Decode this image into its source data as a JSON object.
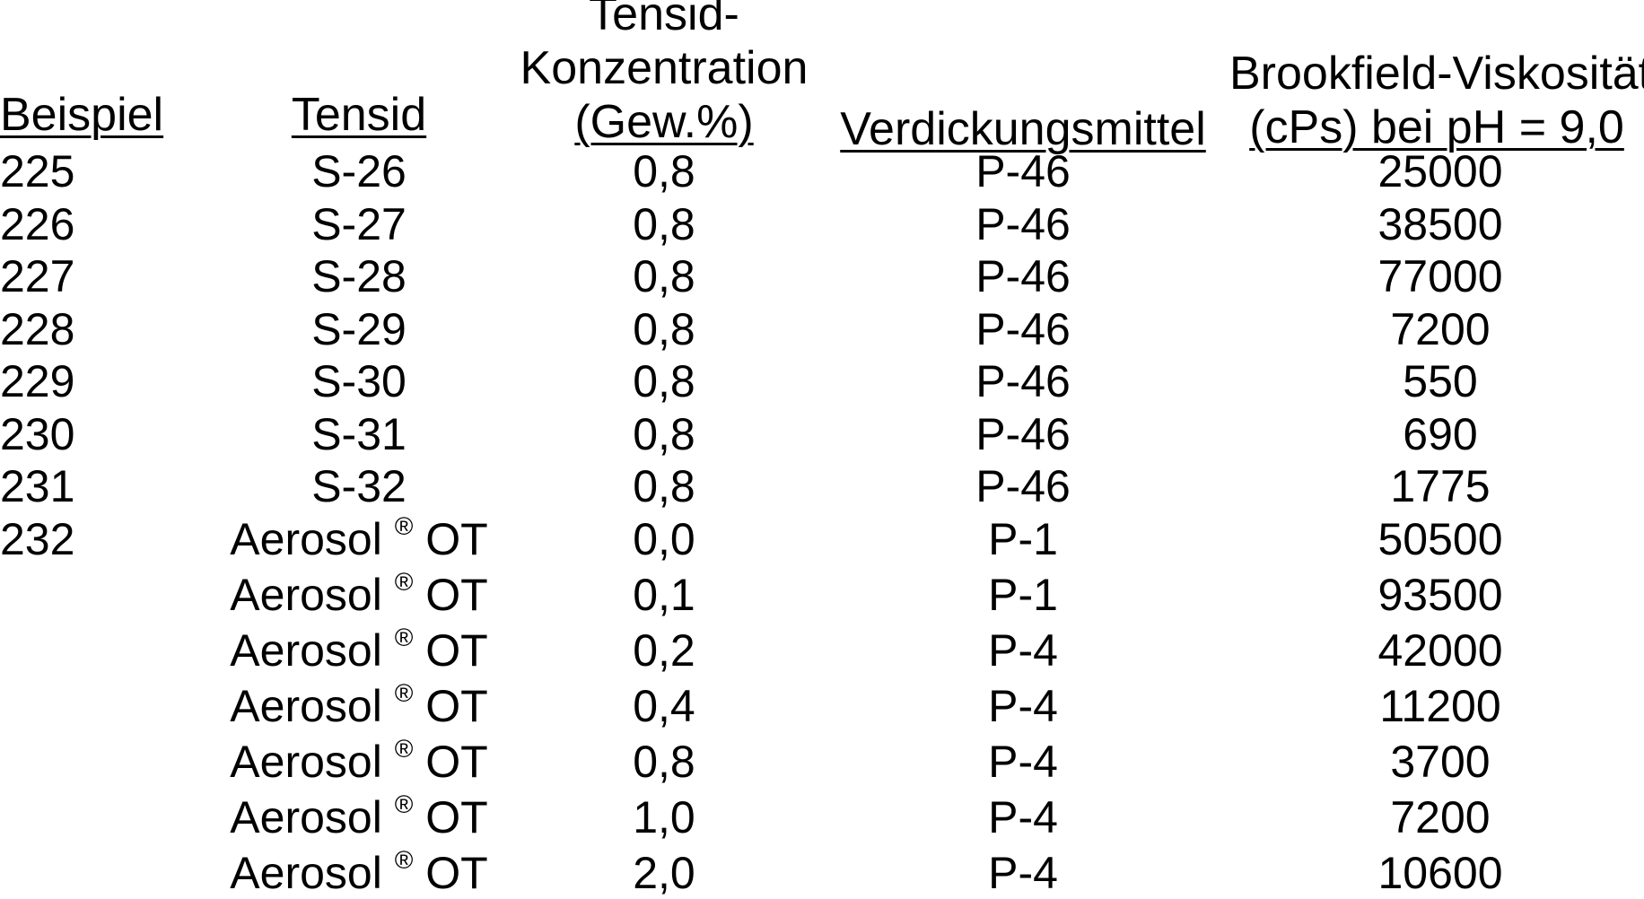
{
  "headers": {
    "beispiel": "Beispiel",
    "tensid": "Tensid",
    "konzentration_line1": "Tensid-",
    "konzentration_line2": "Konzentration",
    "konzentration_line3": "(Gew.%)",
    "verdickungsmittel": "Verdickungsmittel",
    "viskositaet_line1": "Brookfield-Viskosität",
    "viskositaet_line2": "(cPs) bei pH = 9,0"
  },
  "rows": [
    {
      "beispiel": "225",
      "tensid": "S-26",
      "konzentration": "0,8",
      "verdickungsmittel": "P-46",
      "viskositaet": "25000"
    },
    {
      "beispiel": "226",
      "tensid": "S-27",
      "konzentration": "0,8",
      "verdickungsmittel": "P-46",
      "viskositaet": "38500"
    },
    {
      "beispiel": "227",
      "tensid": "S-28",
      "konzentration": "0,8",
      "verdickungsmittel": "P-46",
      "viskositaet": "77000"
    },
    {
      "beispiel": "228",
      "tensid": "S-29",
      "konzentration": "0,8",
      "verdickungsmittel": "P-46",
      "viskositaet": "7200"
    },
    {
      "beispiel": "229",
      "tensid": "S-30",
      "konzentration": "0,8",
      "verdickungsmittel": "P-46",
      "viskositaet": "550"
    },
    {
      "beispiel": "230",
      "tensid": "S-31",
      "konzentration": "0,8",
      "verdickungsmittel": "P-46",
      "viskositaet": "690"
    },
    {
      "beispiel": "231",
      "tensid": "S-32",
      "konzentration": "0,8",
      "verdickungsmittel": "P-46",
      "viskositaet": "1775"
    },
    {
      "beispiel": "232",
      "tensid": "Aerosol ® OT",
      "konzentration": "0,0",
      "verdickungsmittel": "P-1",
      "viskositaet": "50500"
    },
    {
      "beispiel": "",
      "tensid": "Aerosol ® OT",
      "konzentration": "0,1",
      "verdickungsmittel": "P-1",
      "viskositaet": "93500"
    },
    {
      "beispiel": "",
      "tensid": "Aerosol ® OT",
      "konzentration": "0,2",
      "verdickungsmittel": "P-4",
      "viskositaet": "42000"
    },
    {
      "beispiel": "",
      "tensid": "Aerosol ® OT",
      "konzentration": "0,4",
      "verdickungsmittel": "P-4",
      "viskositaet": "11200"
    },
    {
      "beispiel": "",
      "tensid": "Aerosol ® OT",
      "konzentration": "0,8",
      "verdickungsmittel": "P-4",
      "viskositaet": "3700"
    },
    {
      "beispiel": "",
      "tensid": "Aerosol ® OT",
      "konzentration": "1,0",
      "verdickungsmittel": "P-4",
      "viskositaet": "7200"
    },
    {
      "beispiel": "",
      "tensid": "Aerosol ® OT",
      "konzentration": "2,0",
      "verdickungsmittel": "P-4",
      "viskositaet": "10600"
    }
  ]
}
